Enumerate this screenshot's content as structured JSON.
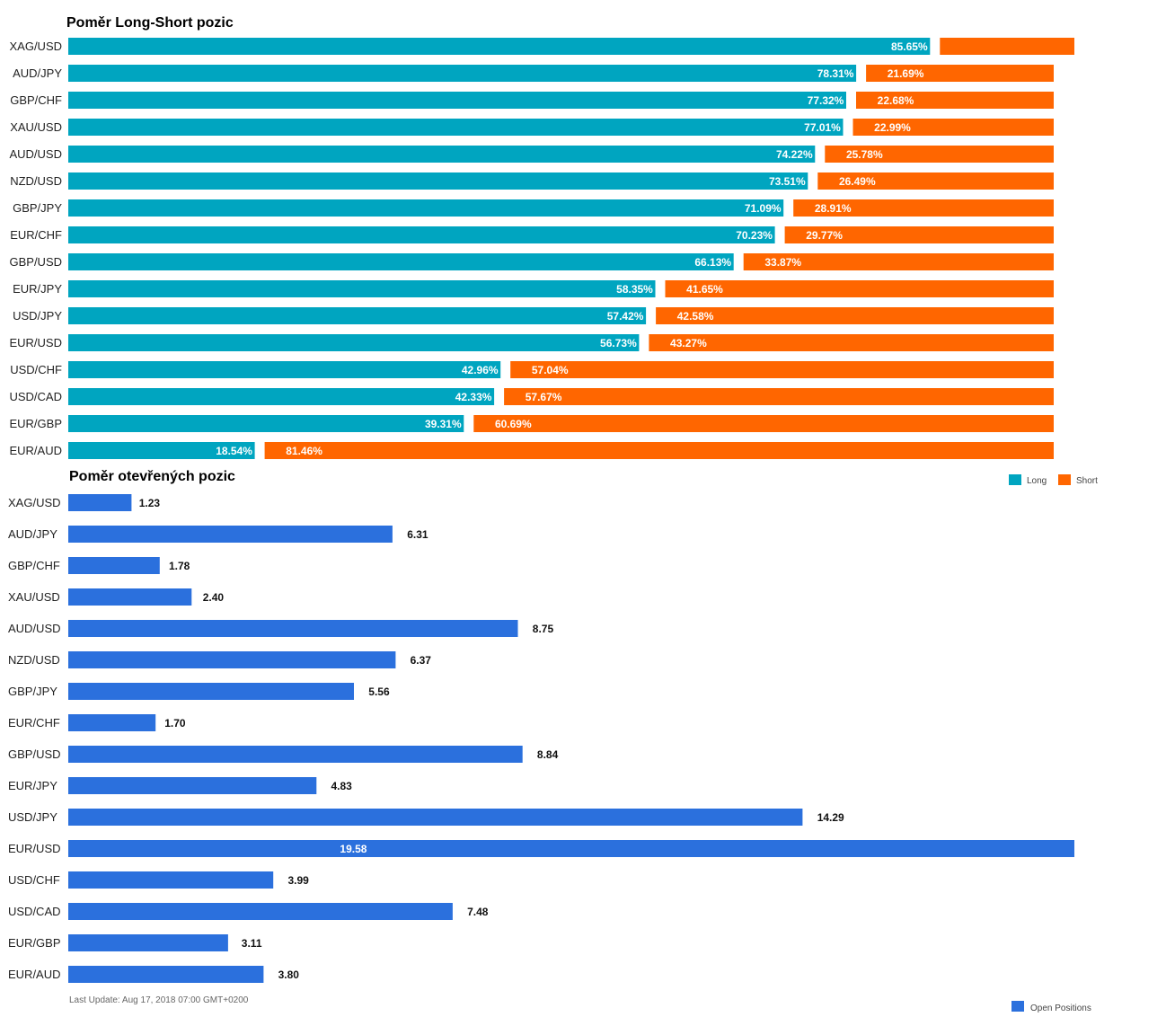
{
  "colors": {
    "long": "#00a5c0",
    "short": "#ff6600",
    "open": "#2b70dd"
  },
  "chart_data": [
    {
      "type": "bar",
      "orientation": "horizontal",
      "stacked": true,
      "title": "Poměr Long-Short pozic",
      "categories": [
        "XAG/USD",
        "AUD/JPY",
        "GBP/CHF",
        "XAU/USD",
        "AUD/USD",
        "NZD/USD",
        "GBP/JPY",
        "EUR/CHF",
        "GBP/USD",
        "EUR/JPY",
        "USD/JPY",
        "EUR/USD",
        "USD/CHF",
        "USD/CAD",
        "EUR/GBP",
        "EUR/AUD"
      ],
      "series": [
        {
          "name": "Long",
          "values": [
            85.65,
            78.31,
            77.32,
            77.01,
            74.22,
            73.51,
            71.09,
            70.23,
            66.13,
            58.35,
            57.42,
            56.73,
            42.96,
            42.33,
            39.31,
            18.54
          ],
          "labels": [
            "85.65%",
            "78.31%",
            "77.32%",
            "77.01%",
            "74.22%",
            "73.51%",
            "71.09%",
            "70.23%",
            "66.13%",
            "58.35%",
            "57.42%",
            "56.73%",
            "42.96%",
            "42.33%",
            "39.31%",
            "18.54%"
          ]
        },
        {
          "name": "Short",
          "values": [
            14.35,
            21.69,
            22.68,
            22.99,
            25.78,
            26.49,
            28.91,
            29.77,
            33.87,
            41.65,
            42.58,
            43.27,
            57.04,
            57.67,
            60.69,
            81.46
          ],
          "labels": [
            "",
            "21.69%",
            "22.68%",
            "22.99%",
            "25.78%",
            "26.49%",
            "28.91%",
            "29.77%",
            "33.87%",
            "41.65%",
            "42.58%",
            "43.27%",
            "57.04%",
            "57.67%",
            "60.69%",
            "81.46%"
          ]
        }
      ],
      "xlim": [
        0,
        100
      ],
      "legend": "bottom-right",
      "grid": false
    },
    {
      "type": "bar",
      "orientation": "horizontal",
      "title": "Poměr otevřených pozic",
      "categories": [
        "XAG/USD",
        "AUD/JPY",
        "GBP/CHF",
        "XAU/USD",
        "AUD/USD",
        "NZD/USD",
        "GBP/JPY",
        "EUR/CHF",
        "GBP/USD",
        "EUR/JPY",
        "USD/JPY",
        "EUR/USD",
        "USD/CHF",
        "USD/CAD",
        "EUR/GBP",
        "EUR/AUD"
      ],
      "series": [
        {
          "name": "Open Positions",
          "values": [
            1.23,
            6.31,
            1.78,
            2.4,
            8.75,
            6.37,
            5.56,
            1.7,
            8.84,
            4.83,
            14.29,
            19.58,
            3.99,
            7.48,
            3.11,
            3.8
          ],
          "labels": [
            "1.23",
            "6.31",
            "1.78",
            "2.40",
            "8.75",
            "6.37",
            "5.56",
            "1.70",
            "8.84",
            "4.83",
            "14.29",
            "19.58",
            "3.99",
            "7.48",
            "3.11",
            "3.80"
          ]
        }
      ],
      "xlim": [
        0,
        19.58
      ],
      "legend": "bottom-right",
      "grid": false
    }
  ],
  "footer": {
    "last_update": "Last Update: Aug 17, 2018 07:00 GMT+0200"
  }
}
